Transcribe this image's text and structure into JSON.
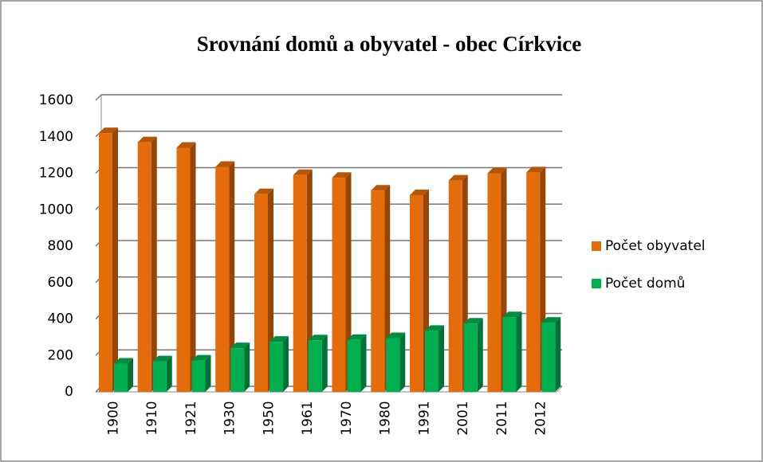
{
  "chart_data": {
    "type": "bar",
    "title": "Srovnání domů a obyvatel  - obec Církvice",
    "categories": [
      "1900",
      "1910",
      "1921",
      "1930",
      "1950",
      "1961",
      "1970",
      "1980",
      "1991",
      "2001",
      "2011",
      "2012"
    ],
    "series": [
      {
        "name": "Počet obyvatel",
        "color": "#e46c0a",
        "values": [
          1420,
          1370,
          1340,
          1235,
          1085,
          1190,
          1175,
          1105,
          1080,
          1160,
          1200,
          1205
        ]
      },
      {
        "name": "Počet domů",
        "color": "#00b050",
        "values": [
          155,
          168,
          172,
          240,
          275,
          283,
          285,
          295,
          335,
          375,
          410,
          380
        ]
      }
    ],
    "ylim": [
      0,
      1600
    ],
    "yticks": [
      0,
      200,
      400,
      600,
      800,
      1000,
      1200,
      1400,
      1600
    ],
    "grid": true,
    "legend": "right"
  }
}
